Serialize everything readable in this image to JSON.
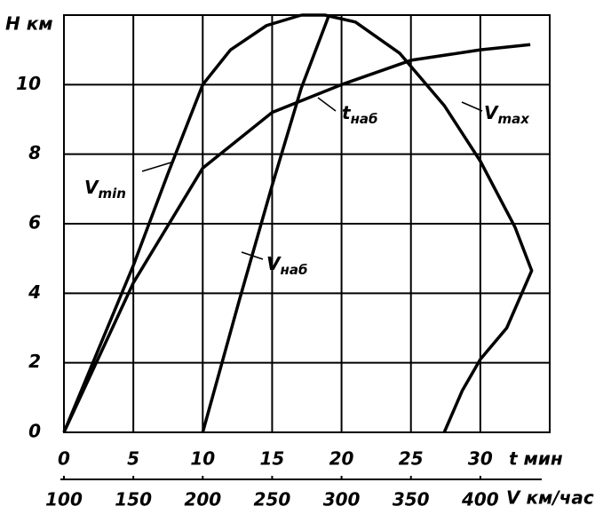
{
  "chart_data": {
    "type": "line",
    "ylabel": "H км",
    "xlabel": "V км/час",
    "x2label": "t мин",
    "xlim": [
      100,
      450
    ],
    "xticks": [
      100,
      150,
      200,
      250,
      300,
      350,
      400
    ],
    "x2lim": [
      0,
      35
    ],
    "x2ticks": [
      0,
      5,
      10,
      15,
      20,
      25,
      30
    ],
    "ylim": [
      0,
      12
    ],
    "yticks": [
      0,
      2,
      4,
      6,
      8,
      10
    ],
    "grid": true,
    "color": "#000000",
    "series": [
      {
        "name": "V",
        "subscript": "min",
        "x": [
          100,
          150,
          175,
          200,
          220,
          246,
          271
        ],
        "values": [
          0,
          4.8,
          7.45,
          10,
          11,
          11.7,
          12
        ]
      },
      {
        "name": "V",
        "subscript": "max",
        "x": [
          271,
          288,
          310,
          342,
          374,
          400,
          425,
          437,
          419,
          400,
          387,
          374
        ],
        "values": [
          12,
          12,
          11.8,
          10.9,
          9.4,
          7.8,
          5.9,
          4.65,
          3,
          2.1,
          1.2,
          0
        ]
      },
      {
        "name": "V",
        "subscript": "наб",
        "x": [
          200,
          226,
          250,
          271,
          291
        ],
        "values": [
          0,
          3.75,
          7.1,
          9.9,
          12
        ]
      },
      {
        "name": "t",
        "subscript": "наб",
        "axis": "x2",
        "x": [
          0,
          5,
          10,
          15,
          20,
          25,
          30,
          33.6
        ],
        "values": [
          0,
          4.3,
          7.6,
          9.2,
          10,
          10.7,
          11,
          11.15
        ]
      }
    ]
  }
}
